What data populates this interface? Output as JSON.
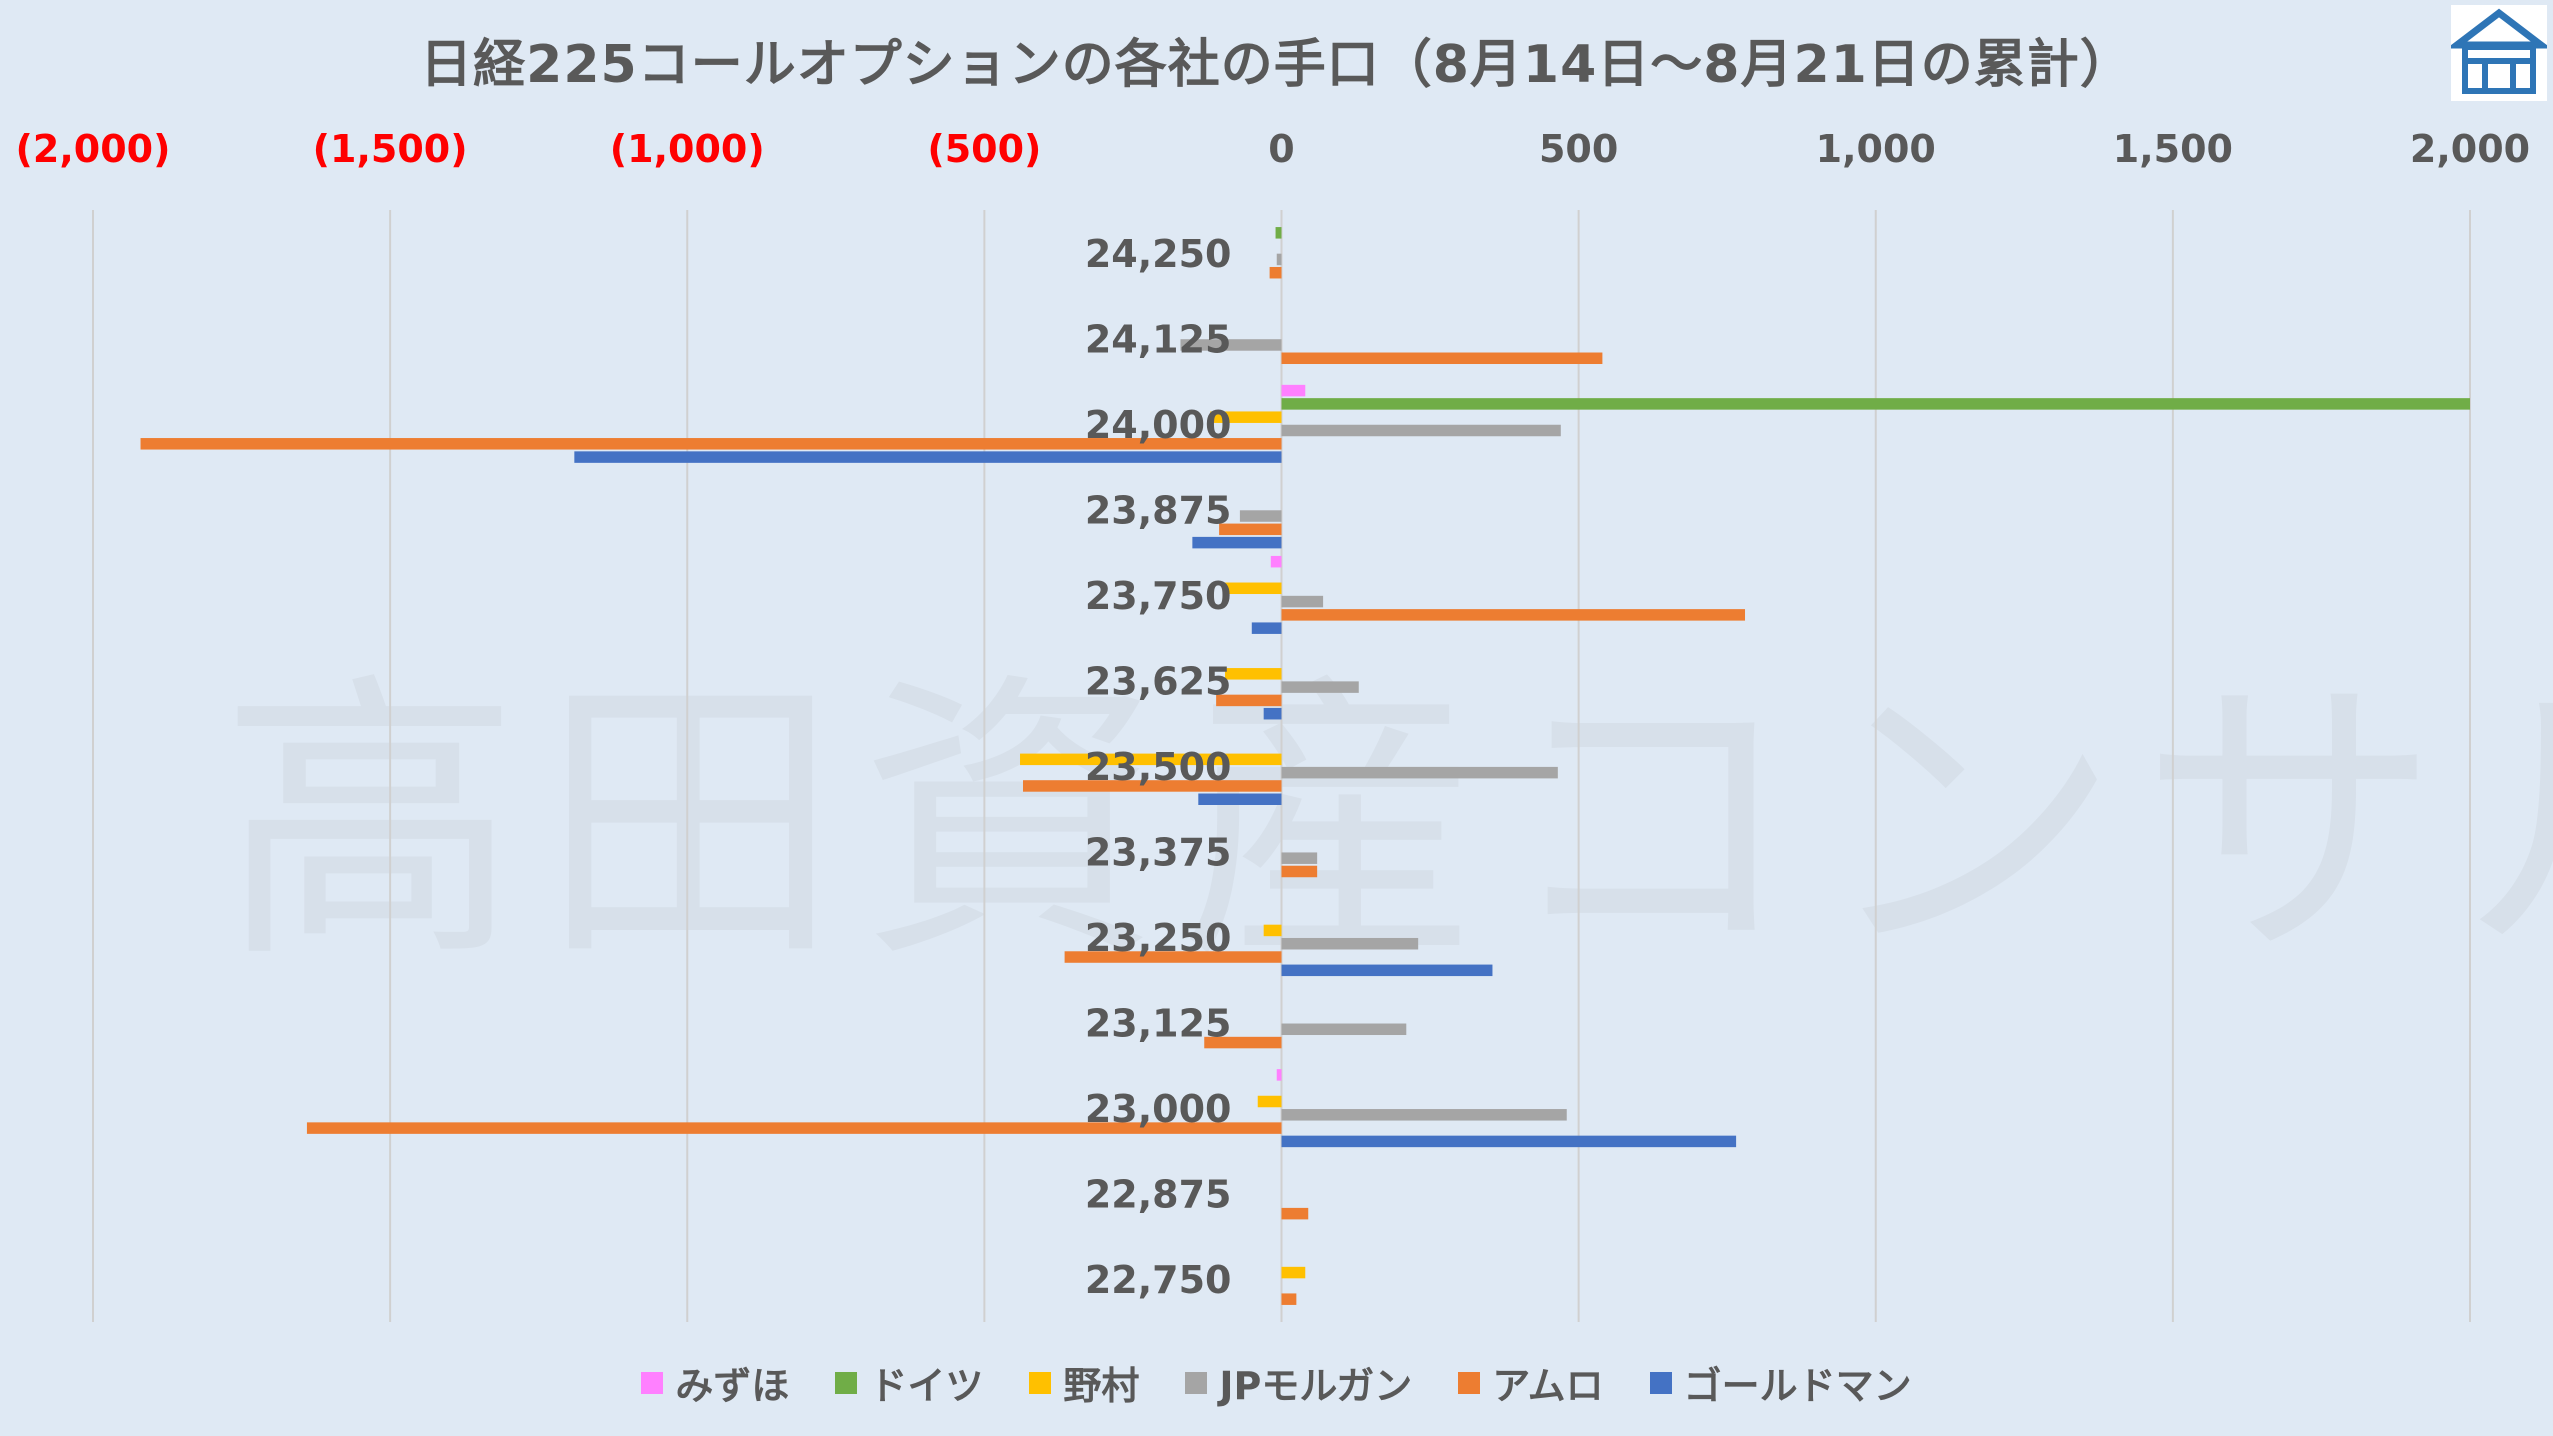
{
  "chart_data": {
    "type": "bar",
    "orientation": "horizontal",
    "title": "日経225コールオプションの各社の手口（8月14日～8月21日の累計）",
    "categories": [
      "24,250",
      "24,125",
      "24,000",
      "23,875",
      "23,750",
      "23,625",
      "23,500",
      "23,375",
      "23,250",
      "23,125",
      "23,000",
      "22,875",
      "22,750"
    ],
    "xlim": [
      -2000,
      2000
    ],
    "x_ticks": [
      -2000,
      -1500,
      -1000,
      -500,
      0,
      500,
      1000,
      1500,
      2000
    ],
    "x_tick_labels": [
      "(2,000)",
      "(1,500)",
      "(1,000)",
      "(500)",
      "0",
      "500",
      "1,000",
      "1,500",
      "2,000"
    ],
    "axis_position": "top",
    "negative_tick_color": "#ff0000",
    "positive_tick_color": "#595959",
    "gridlines": "vertical",
    "legend_position": "bottom",
    "series": [
      {
        "name": "みずほ",
        "color": "#ff80ff",
        "values": [
          0,
          0,
          40,
          0,
          -18,
          0,
          0,
          0,
          0,
          0,
          -8,
          0,
          0
        ]
      },
      {
        "name": "ドイツ",
        "color": "#70ad47",
        "values": [
          -10,
          0,
          2000,
          0,
          0,
          0,
          0,
          0,
          0,
          0,
          0,
          0,
          0
        ]
      },
      {
        "name": "野村",
        "color": "#ffc000",
        "values": [
          0,
          0,
          -120,
          0,
          -95,
          -95,
          -440,
          0,
          -30,
          0,
          -40,
          0,
          40
        ]
      },
      {
        "name": "JPモルガン",
        "color": "#a5a5a5",
        "values": [
          -8,
          -170,
          470,
          -70,
          70,
          130,
          465,
          60,
          230,
          210,
          480,
          0,
          0
        ]
      },
      {
        "name": "アムロ",
        "color": "#ed7d31",
        "values": [
          -20,
          540,
          -1920,
          -105,
          780,
          -110,
          -435,
          60,
          -365,
          -130,
          -1640,
          45,
          25
        ]
      },
      {
        "name": "ゴールドマン",
        "color": "#4472c4",
        "values": [
          0,
          0,
          -1190,
          -150,
          -50,
          -30,
          -140,
          0,
          355,
          0,
          765,
          0,
          0
        ]
      }
    ]
  },
  "watermark": "高田資産コンサル",
  "logo": {
    "icon": "house-logo-icon",
    "color": "#2e75b6"
  }
}
